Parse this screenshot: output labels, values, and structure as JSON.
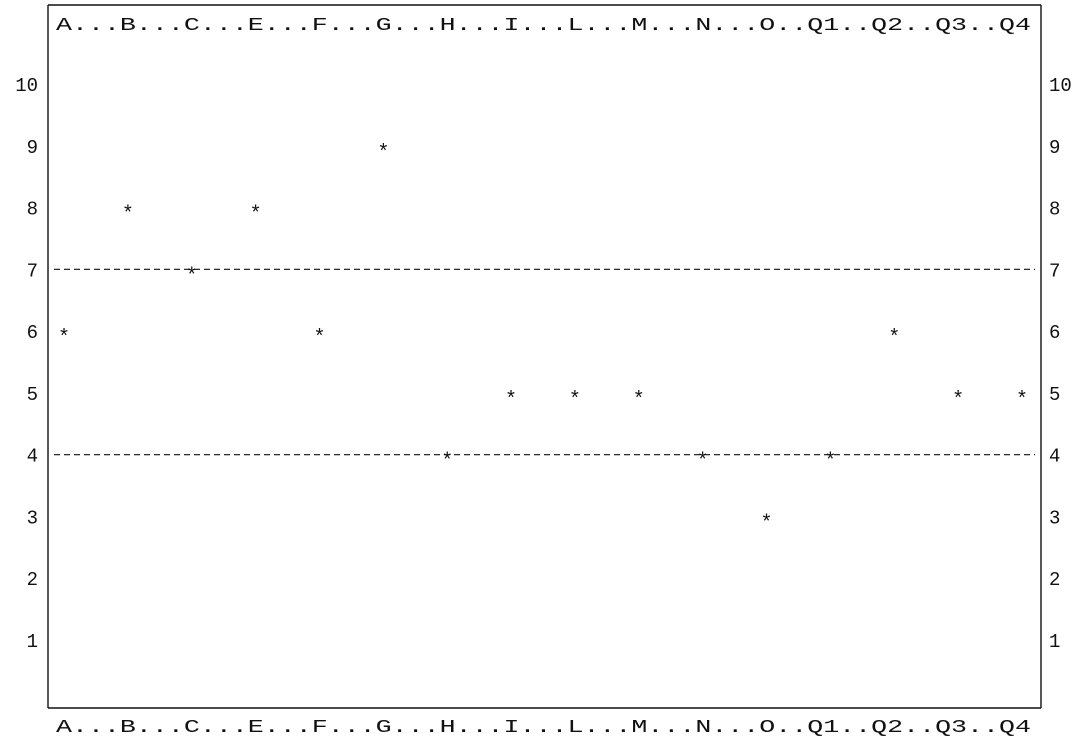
{
  "chart_data": {
    "type": "scatter",
    "marker": "*",
    "categories": [
      "A",
      "B",
      "C",
      "E",
      "F",
      "G",
      "H",
      "I",
      "L",
      "M",
      "N",
      "O",
      "Q1",
      "Q2",
      "Q3",
      "Q4"
    ],
    "values": [
      6,
      8,
      7,
      8,
      6,
      9,
      4,
      5,
      5,
      5,
      4,
      3,
      4,
      6,
      5,
      5
    ],
    "yticks": [
      1,
      2,
      3,
      4,
      5,
      6,
      7,
      8,
      9,
      10
    ],
    "ylim": [
      0,
      11
    ],
    "reference_lines": [
      7,
      4
    ],
    "top_axis_labels": "A...B...C...E...F...G...H...I...L...M...N...O..Q1..Q2..Q3..Q4",
    "bottom_axis_labels": "A...B...C...E...F...G...H...I...L...M...N...O..Q1..Q2..Q3..Q4",
    "grid": false,
    "legend": "none",
    "title": "",
    "xlabel": "",
    "ylabel": ""
  }
}
